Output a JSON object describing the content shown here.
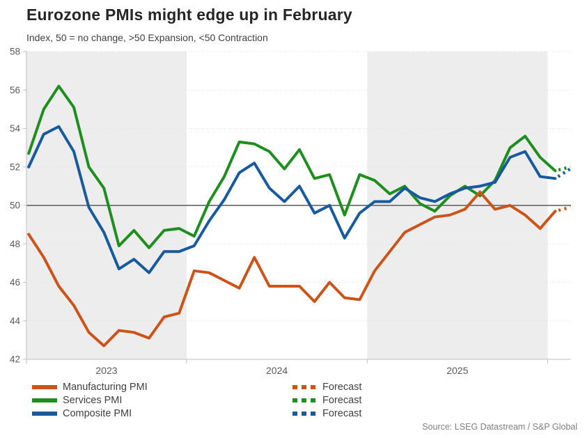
{
  "header": {
    "title": "Eurozone PMIs might edge up in February",
    "subtitle": "Index, 50 = no change, >50 Expansion, <50 Contraction"
  },
  "legend": {
    "series_labels": [
      "Manufacturing PMI",
      "Services PMI",
      "Composite PMI"
    ],
    "forecast_label": "Forecast"
  },
  "source": "Source: LSEG Datastream / S&P Global",
  "colors": {
    "band": "#EDEDED",
    "grid": "#D9D9D9",
    "axis": "#BFBFBF",
    "axis_text": "#595959",
    "reference_line": "#7F7F7F",
    "title_text": "#262626",
    "legend_text": "#404040",
    "source_text": "#7F7F7F"
  },
  "chart_data": {
    "type": "line",
    "title": "Eurozone PMIs might edge up in February",
    "subtitle": "Index, 50 = no change, >50 Expansion, <50 Contraction",
    "y_axis": {
      "min": 42,
      "max": 58,
      "tick_step": 2,
      "reference_line": 50
    },
    "x_axis": {
      "year_labels": [
        "2023",
        "2024",
        "2025"
      ],
      "shaded_years": [
        "2023",
        "2025"
      ],
      "months": [
        "2023-02",
        "2023-03",
        "2023-04",
        "2023-05",
        "2023-06",
        "2023-07",
        "2023-08",
        "2023-09",
        "2023-10",
        "2023-11",
        "2023-12",
        "2024-01",
        "2024-02",
        "2024-03",
        "2024-04",
        "2024-05",
        "2024-06",
        "2024-07",
        "2024-08",
        "2024-09",
        "2024-10",
        "2024-11",
        "2024-12",
        "2025-01",
        "2025-02",
        "2025-03",
        "2025-04",
        "2025-05",
        "2025-06",
        "2025-07",
        "2025-08",
        "2025-09",
        "2025-10",
        "2025-11",
        "2025-12",
        "2026-01"
      ],
      "forecast_month": "2026-02"
    },
    "series": [
      {
        "id": "manufacturing-pmi",
        "name": "Manufacturing PMI",
        "color": "#CC5418",
        "values": [
          48.5,
          47.3,
          45.8,
          44.8,
          43.4,
          42.7,
          43.5,
          43.4,
          43.1,
          44.2,
          44.4,
          46.6,
          46.5,
          46.1,
          45.7,
          47.3,
          45.8,
          45.8,
          45.8,
          45.0,
          46.0,
          45.2,
          45.1,
          46.6,
          47.6,
          48.6,
          49.0,
          49.4,
          49.5,
          49.8,
          50.7,
          49.8,
          50.0,
          49.5,
          48.8,
          49.7
        ],
        "forecast": 49.9
      },
      {
        "id": "services-pmi",
        "name": "Services PMI",
        "color": "#1E8F1E",
        "values": [
          52.7,
          55.0,
          56.2,
          55.1,
          52.0,
          50.9,
          47.9,
          48.7,
          47.8,
          48.7,
          48.8,
          48.4,
          50.2,
          51.5,
          53.3,
          53.2,
          52.8,
          51.9,
          52.9,
          51.4,
          51.6,
          49.5,
          51.6,
          51.3,
          50.6,
          51.0,
          50.1,
          49.7,
          50.5,
          51.0,
          50.5,
          51.3,
          53.0,
          53.6,
          52.5,
          51.8
        ],
        "forecast": 52.0
      },
      {
        "id": "composite-pmi",
        "name": "Composite PMI",
        "color": "#175A9E",
        "values": [
          52.0,
          53.7,
          54.1,
          52.8,
          49.9,
          48.6,
          46.7,
          47.2,
          46.5,
          47.6,
          47.6,
          47.9,
          49.2,
          50.3,
          51.7,
          52.2,
          50.9,
          50.2,
          51.0,
          49.6,
          50.0,
          48.3,
          49.6,
          50.2,
          50.2,
          50.9,
          50.4,
          50.2,
          50.6,
          50.9,
          51.0,
          51.2,
          52.5,
          52.8,
          51.5,
          51.4
        ],
        "forecast": 51.9
      }
    ]
  }
}
